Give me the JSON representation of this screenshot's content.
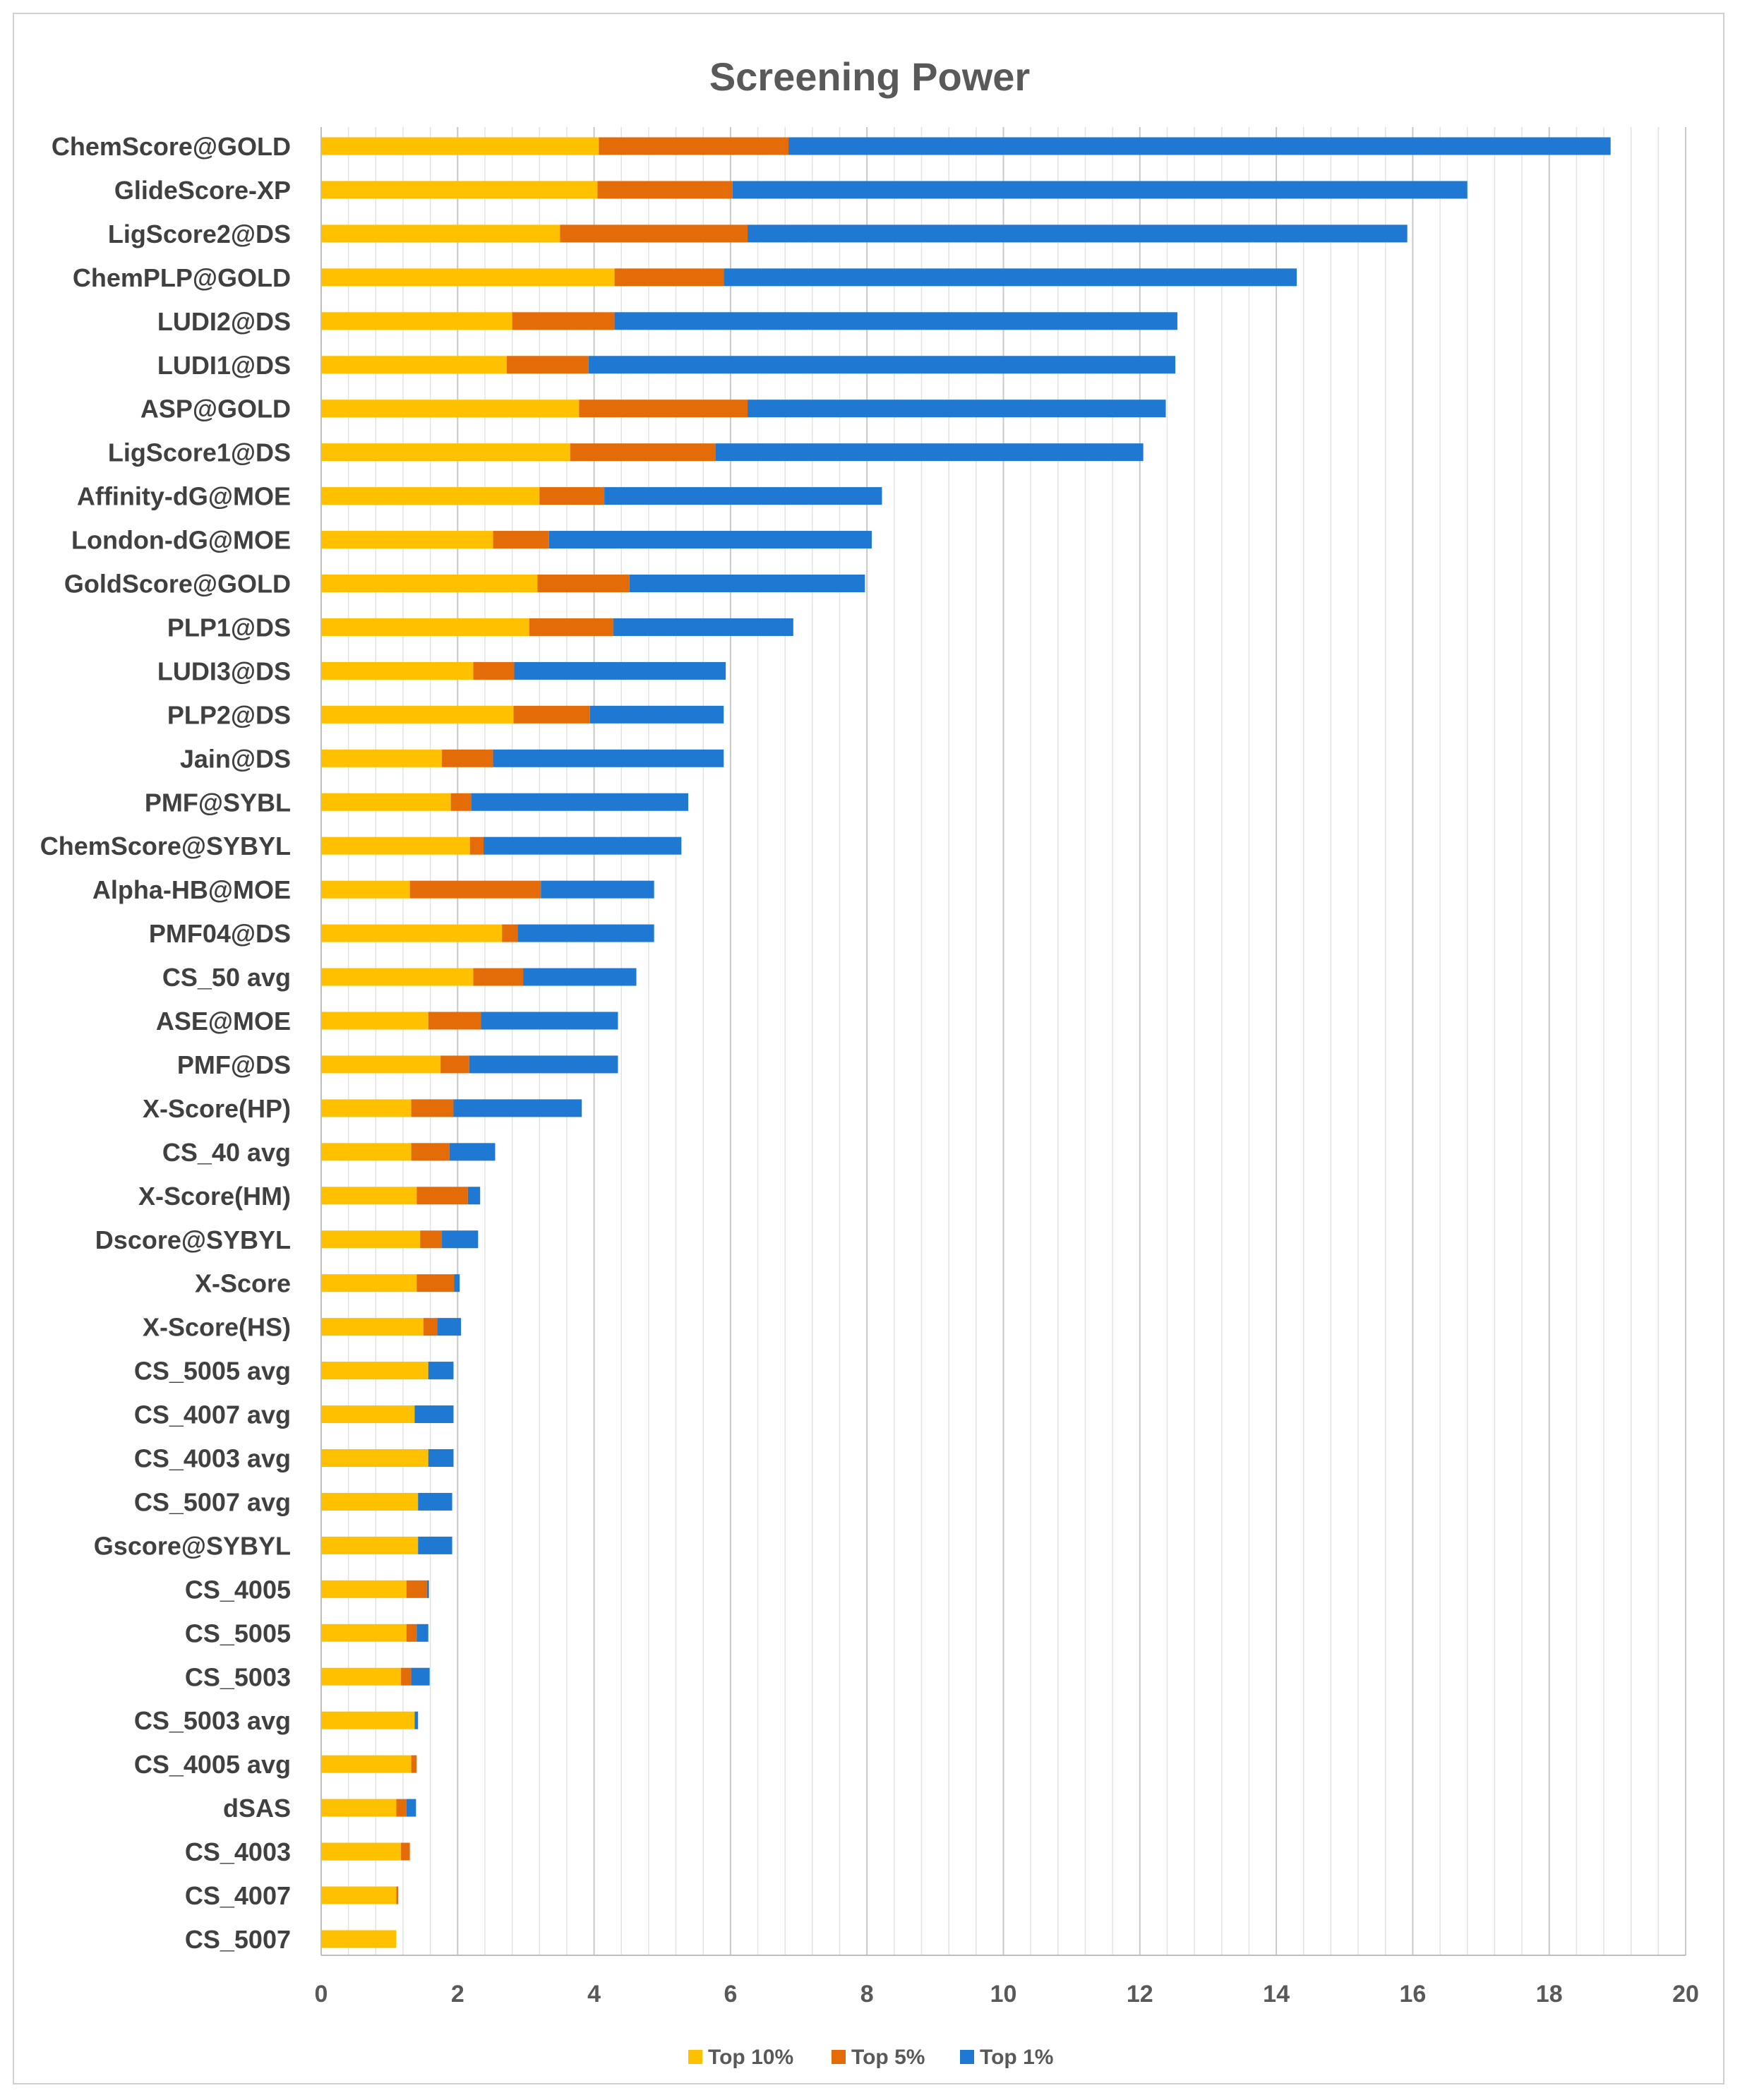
{
  "chart_data": {
    "type": "bar",
    "orientation": "horizontal",
    "stacked": true,
    "title": "Screening Power",
    "xlabel": "",
    "ylabel": "",
    "xlim": [
      0,
      20
    ],
    "x_ticks": [
      "0",
      "2",
      "4",
      "6",
      "8",
      "10",
      "12",
      "14",
      "16",
      "18",
      "20"
    ],
    "grid": true,
    "legend_position": "bottom",
    "colors": [
      "#FFC000",
      "#E36C09",
      "#1F78D1"
    ],
    "categories": [
      "ChemScore@GOLD",
      "GlideScore-XP",
      "LigScore2@DS",
      "ChemPLP@GOLD",
      "LUDI2@DS",
      "LUDI1@DS",
      "ASP@GOLD",
      "LigScore1@DS",
      "Affinity-dG@MOE",
      "London-dG@MOE",
      "GoldScore@GOLD",
      "PLP1@DS",
      "LUDI3@DS",
      "PLP2@DS",
      "Jain@DS",
      "PMF@SYBL",
      "ChemScore@SYBYL",
      "Alpha-HB@MOE",
      "PMF04@DS",
      "CS_50 avg",
      "ASE@MOE",
      "PMF@DS",
      "X-Score(HP)",
      "CS_40 avg",
      "X-Score(HM)",
      "Dscore@SYBYL",
      "X-Score",
      "X-Score(HS)",
      "CS_5005 avg",
      "CS_4007 avg",
      "CS_4003 avg",
      "CS_5007 avg",
      "Gscore@SYBYL",
      "CS_4005",
      "CS_5005",
      "CS_5003",
      "CS_5003 avg",
      "CS_4005 avg",
      "dSAS",
      "CS_4003",
      "CS_4007",
      "CS_5007"
    ],
    "series": [
      {
        "name": "Top 10%",
        "values": [
          4.07,
          4.05,
          3.5,
          4.3,
          2.8,
          2.72,
          3.78,
          3.65,
          3.2,
          2.52,
          3.17,
          3.05,
          2.23,
          2.82,
          1.77,
          1.9,
          2.18,
          1.3,
          2.65,
          2.23,
          1.57,
          1.75,
          1.32,
          1.32,
          1.4,
          1.45,
          1.4,
          1.5,
          1.57,
          1.37,
          1.57,
          1.42,
          1.42,
          1.25,
          1.25,
          1.17,
          1.37,
          1.32,
          1.1,
          1.17,
          1.1,
          1.1
        ]
      },
      {
        "name": "Top 5%",
        "values": [
          2.78,
          1.98,
          2.75,
          1.6,
          1.5,
          1.2,
          2.47,
          2.13,
          0.95,
          0.82,
          1.35,
          1.23,
          0.6,
          1.12,
          0.75,
          0.3,
          0.2,
          1.92,
          0.23,
          0.73,
          0.77,
          0.42,
          0.62,
          0.56,
          0.75,
          0.32,
          0.55,
          0.2,
          0,
          0,
          0,
          0,
          0,
          0.3,
          0.15,
          0.15,
          0,
          0.08,
          0.15,
          0.13,
          0.03,
          0
        ]
      },
      {
        "name": "Top 1%",
        "values": [
          12.05,
          10.77,
          9.67,
          8.4,
          8.25,
          8.6,
          6.13,
          6.27,
          4.07,
          4.73,
          3.45,
          2.64,
          3.1,
          1.96,
          3.38,
          3.18,
          2.9,
          1.66,
          2.0,
          1.66,
          2.01,
          2.18,
          1.88,
          0.67,
          0.18,
          0.53,
          0.08,
          0.35,
          0.37,
          0.57,
          0.37,
          0.5,
          0.5,
          0.03,
          0.17,
          0.27,
          0.05,
          0,
          0.14,
          0,
          0,
          0
        ]
      }
    ]
  }
}
